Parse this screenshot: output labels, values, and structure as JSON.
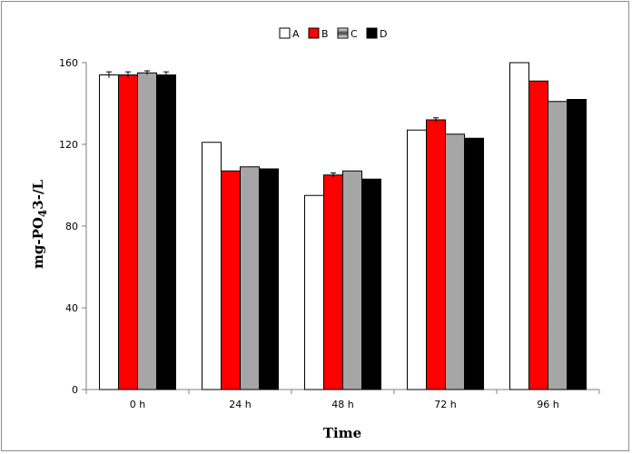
{
  "chart_data": {
    "type": "bar",
    "categories": [
      "0 h",
      "24 h",
      "48 h",
      "72 h",
      "96 h"
    ],
    "series": [
      {
        "name": "A",
        "values": [
          154,
          121,
          95,
          127,
          160
        ],
        "error": [
          1.5,
          0,
          0,
          0,
          0
        ],
        "color": "#ffffff"
      },
      {
        "name": "B",
        "values": [
          154,
          107,
          105,
          132,
          151
        ],
        "error": [
          1.5,
          0,
          1,
          1,
          0
        ],
        "color": "#ff0000"
      },
      {
        "name": "C",
        "values": [
          155,
          109,
          107,
          125,
          141
        ],
        "error": [
          1,
          0,
          0,
          0,
          0
        ],
        "color": "gradient-gray"
      },
      {
        "name": "D",
        "values": [
          154,
          108,
          103,
          123,
          142
        ],
        "error": [
          1.5,
          0,
          0,
          0,
          0
        ],
        "color": "#000000"
      }
    ],
    "xlabel": "Time",
    "ylabel_parts": {
      "prefix": "mg-PO",
      "subscript": "4",
      "suffix": "3-/L"
    },
    "ylim": [
      0,
      160
    ],
    "yticks": [
      0,
      40,
      80,
      120,
      160
    ],
    "legend_position": "top-center",
    "grid": false
  }
}
